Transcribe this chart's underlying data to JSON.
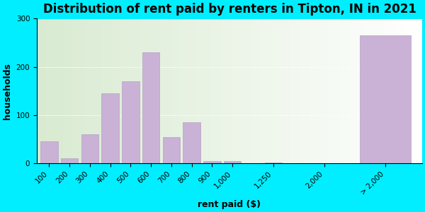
{
  "title": "Distribution of rent paid by renters in Tipton, IN in 2021",
  "xlabel": "rent paid ($)",
  "ylabel": "households",
  "bar_labels": [
    "100",
    "200",
    "300",
    "400",
    "500",
    "600",
    "700",
    "800",
    "900",
    "1,000",
    "1,250",
    "2,000",
    "> 2,000"
  ],
  "bar_values": [
    45,
    10,
    60,
    145,
    170,
    230,
    55,
    85,
    5,
    5,
    2,
    0,
    265
  ],
  "bar_color": "#c9b2d5",
  "bar_edge_color": "#b8a0c8",
  "ylim": [
    0,
    300
  ],
  "yticks": [
    0,
    100,
    200,
    300
  ],
  "outer_bg": "#00eeff",
  "inner_bg_left": "#b8d8b0",
  "inner_bg_right": "#f0f4e8",
  "title_fontsize": 12,
  "axis_label_fontsize": 9,
  "tick_fontsize": 7.5
}
